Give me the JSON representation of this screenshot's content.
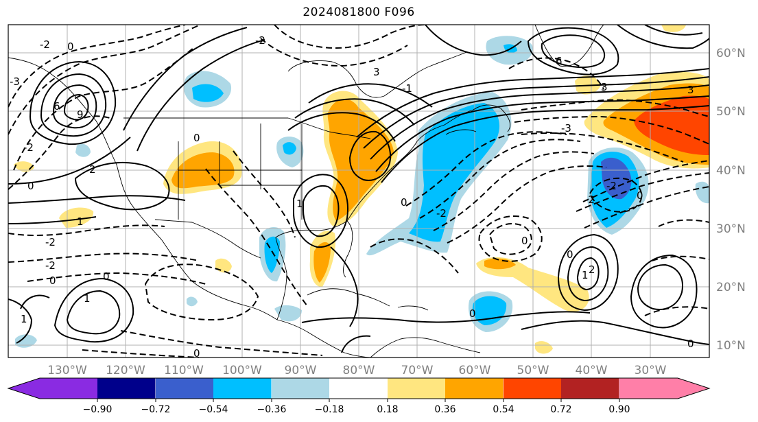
{
  "title": "2024081800 F096",
  "map": {
    "lon_ticks": [
      "130°W",
      "120°W",
      "110°W",
      "100°W",
      "90°W",
      "80°W",
      "70°W",
      "60°W",
      "50°W",
      "40°W",
      "30°W"
    ],
    "lat_ticks": [
      "60°N",
      "50°N",
      "40°N",
      "30°N",
      "20°N",
      "10°N"
    ],
    "contour_labels": [
      "-3",
      "-2",
      "-1",
      "0",
      "1",
      "2",
      "3",
      "6",
      "9"
    ]
  },
  "colorbar": {
    "ticks": [
      "−0.90",
      "−0.72",
      "−0.54",
      "−0.36",
      "−0.18",
      "0.18",
      "0.36",
      "0.54",
      "0.72",
      "0.90"
    ],
    "colors": [
      "#8a2be2",
      "#00008b",
      "#3a5fcd",
      "#00bfff",
      "#add8e6",
      "#ffffff",
      "#ffe680",
      "#ffa500",
      "#ff4500",
      "#b22222",
      "#ff7fa8"
    ]
  }
}
